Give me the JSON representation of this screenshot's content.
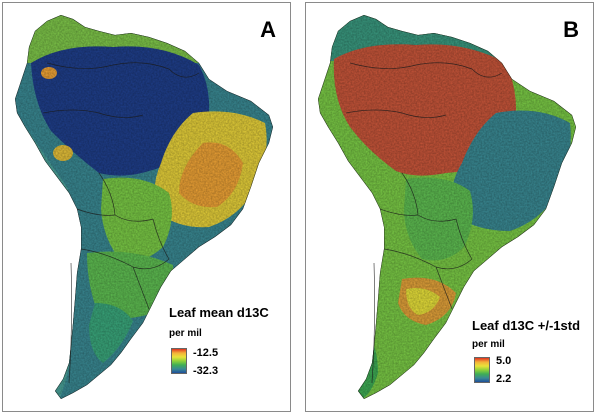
{
  "panels": [
    {
      "letter": "A",
      "legend_title": "Leaf mean d13C",
      "unit": "per mil",
      "high_label": "-12.5",
      "low_label": "-32.3",
      "scale_colors": [
        "#e0311f",
        "#f3b13a",
        "#e9e23a",
        "#8fd13a",
        "#3fae55",
        "#3a8a94",
        "#1f4f9a"
      ]
    },
    {
      "letter": "B",
      "legend_title": "Leaf d13C +/-1std",
      "unit": "per mil",
      "high_label": "5.0",
      "low_label": "2.2",
      "scale_colors": [
        "#e0311f",
        "#f3b13a",
        "#e9e23a",
        "#8fd13a",
        "#3fae55",
        "#3a8a94",
        "#1f4f9a"
      ]
    }
  ]
}
